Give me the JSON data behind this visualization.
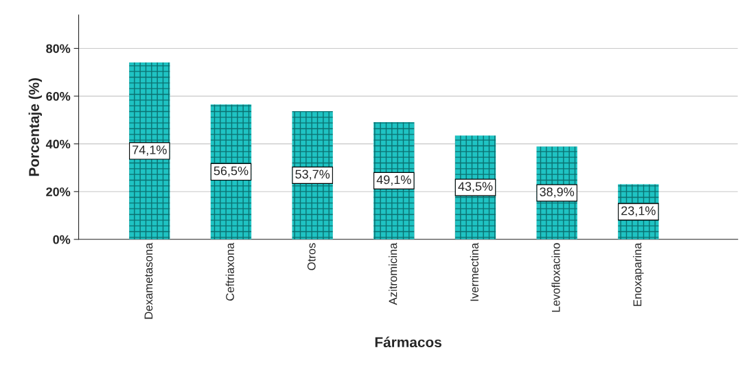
{
  "chart_data": {
    "type": "bar",
    "xlabel": "Fármacos",
    "ylabel": "Porcentaje (%)",
    "categories": [
      "Dexametasona",
      "Ceftriaxona",
      "Otros",
      "Azitromicina",
      "Ivermectina",
      "Levofloxacino",
      "Enoxaparina"
    ],
    "values": [
      74.1,
      56.5,
      53.7,
      49.1,
      43.5,
      38.9,
      23.1
    ],
    "value_labels": [
      "74,1%",
      "56,5%",
      "53,7%",
      "49,1%",
      "43,5%",
      "38,9%",
      "23,1%"
    ],
    "color": "#1fc3c3",
    "ylim": [
      0,
      94
    ],
    "yticks": [
      {
        "value": 0,
        "label": "0%"
      },
      {
        "value": 20,
        "label": "20%"
      },
      {
        "value": 40,
        "label": "40%"
      },
      {
        "value": 60,
        "label": "60%"
      },
      {
        "value": 80,
        "label": "80%"
      }
    ],
    "grid": "y"
  }
}
